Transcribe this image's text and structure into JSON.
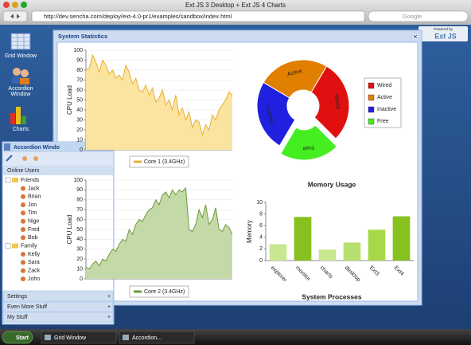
{
  "browser": {
    "title": "Ext JS 3 Desktop + Ext JS 4 Charts",
    "url": "http://dev.sencha.com/deploy/ext-4.0-pr1/examples/sandbox/index.html",
    "search": "Google"
  },
  "desktop": {
    "icons": [
      "Grid Window",
      "Accordion Window",
      "Charts"
    ],
    "badge": {
      "top": "Powered by",
      "brand": "Ext JS"
    }
  },
  "accordion": {
    "title": "Accordion Windo",
    "panel": "Online Users",
    "groups": [
      {
        "name": "Friends",
        "members": [
          "Jack",
          "Brian",
          "Jon",
          "Tim",
          "Nige",
          "Fred",
          "Bob"
        ]
      },
      {
        "name": "Family",
        "members": [
          "Kelly",
          "Sara",
          "Zack",
          "John"
        ]
      }
    ],
    "sections": [
      "Settings",
      "Even More Stuff",
      "My Stuff"
    ]
  },
  "taskbar": {
    "start": "Start",
    "tasks": [
      "Grid Window",
      "Accordion..."
    ]
  },
  "window": {
    "title": "System Statistics"
  },
  "chart_data": [
    {
      "type": "line",
      "ylabel": "CPU Load",
      "ylim": [
        0,
        100
      ],
      "yticks": [
        0,
        10,
        20,
        30,
        40,
        50,
        60,
        70,
        80,
        90,
        100
      ],
      "grid": true,
      "series": [
        {
          "name": "Core 1 (3.4GHz)",
          "color": "#e8b030",
          "fill": "#fbe3a0",
          "values": [
            80,
            82,
            95,
            88,
            78,
            90,
            85,
            76,
            80,
            72,
            75,
            70,
            85,
            78,
            66,
            72,
            60,
            58,
            65,
            55,
            62,
            48,
            52,
            60,
            45,
            50,
            40,
            55,
            35,
            42,
            30,
            38,
            22,
            30,
            28,
            15,
            25,
            20,
            35,
            30,
            40,
            45,
            50,
            58,
            55
          ]
        }
      ]
    },
    {
      "type": "line",
      "ylabel": "CPU Load",
      "ylim": [
        0,
        100
      ],
      "yticks": [
        0,
        10,
        20,
        30,
        40,
        50,
        60,
        70,
        80,
        90,
        100
      ],
      "grid": true,
      "series": [
        {
          "name": "Core 2 (3.4GHz)",
          "color": "#6a9a3a",
          "fill": "#c4d9a8",
          "values": [
            12,
            10,
            15,
            18,
            13,
            20,
            18,
            25,
            30,
            28,
            35,
            40,
            38,
            50,
            45,
            55,
            60,
            58,
            65,
            70,
            72,
            80,
            75,
            85,
            88,
            82,
            90,
            85,
            90,
            88,
            92,
            50,
            48,
            55,
            70,
            62,
            75,
            55,
            60,
            72,
            50,
            48,
            55,
            52,
            45
          ]
        }
      ]
    },
    {
      "type": "pie",
      "categories": [
        "Wired",
        "Active",
        "Inactive",
        "Free"
      ],
      "values": [
        29,
        25,
        25,
        21
      ],
      "colors": [
        "#e01010",
        "#e07f00",
        "#2020e0",
        "#44ee20"
      ]
    },
    {
      "type": "bar",
      "title": "Memory Usage",
      "ylabel": "Memory",
      "xlabel": "System Processes",
      "categories": [
        "explorer",
        "monitor",
        "charts",
        "desktop",
        "Ext3",
        "Ext4"
      ],
      "values": [
        2.8,
        7.5,
        1.9,
        3.1,
        5.3,
        7.6
      ],
      "colors": [
        "#c8e890",
        "#88c020",
        "#c8e890",
        "#b8e070",
        "#a8d848",
        "#88c020"
      ],
      "ylim": [
        0,
        10
      ],
      "yticks": [
        0,
        2,
        4,
        6,
        8,
        10
      ]
    }
  ]
}
